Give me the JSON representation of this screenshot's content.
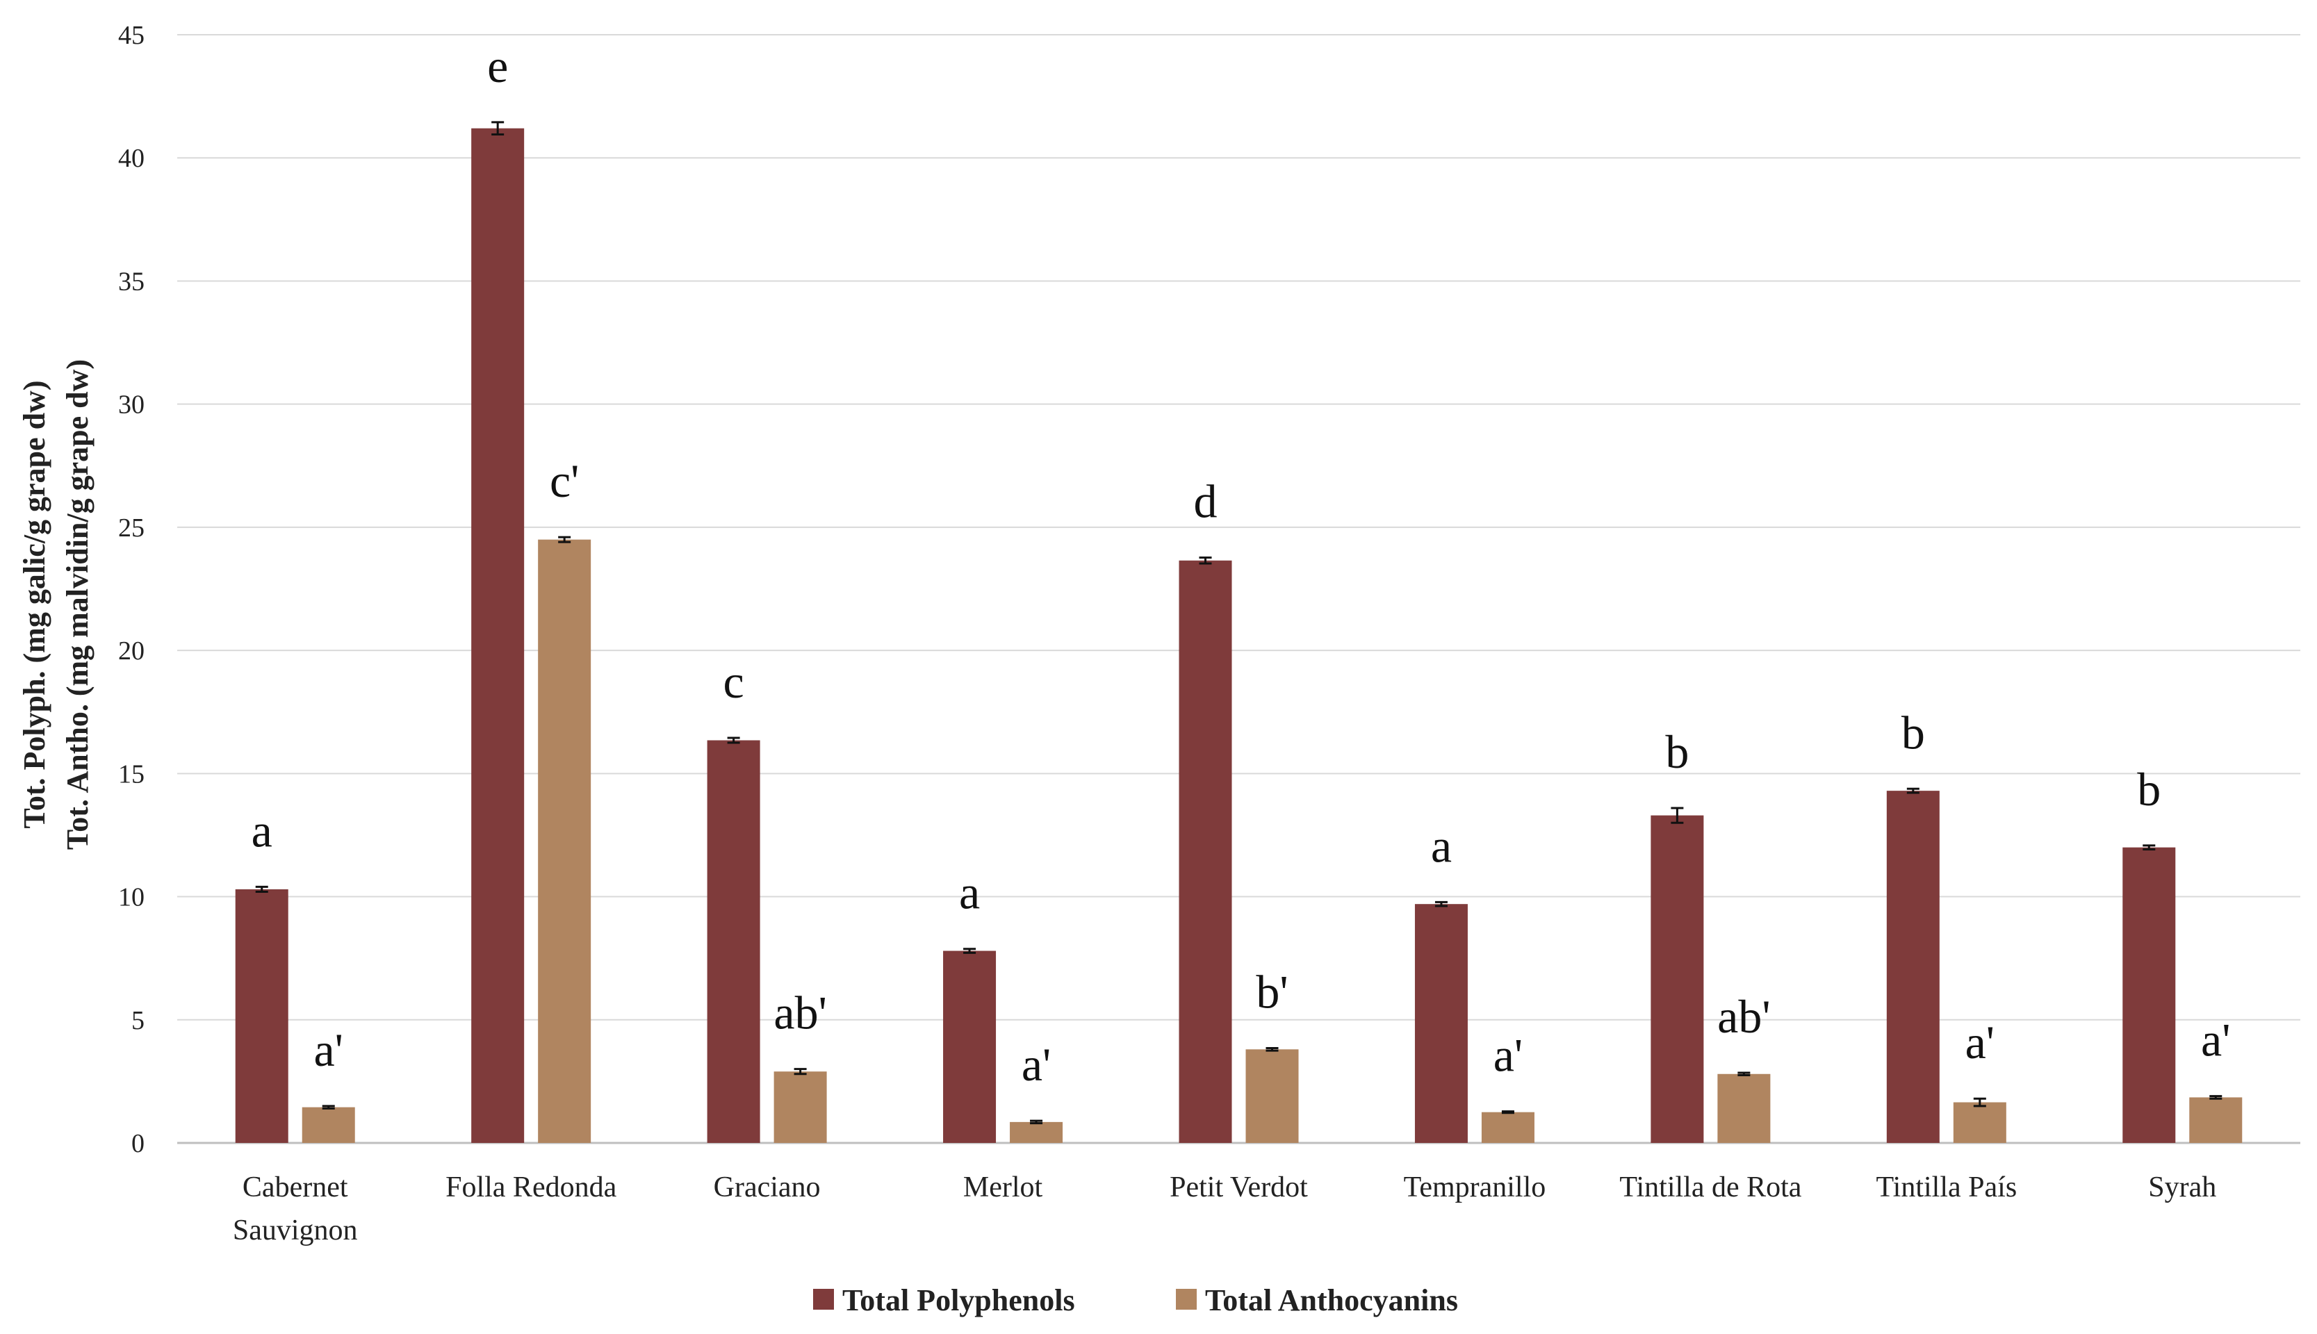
{
  "chart_data": {
    "type": "bar",
    "title": "",
    "xlabel": "",
    "ylabel_lines": [
      "Tot. Polyph. (mg galic/g grape dw)",
      "Tot. Antho. (mg malvidin/g grape dw)"
    ],
    "ylim": [
      0,
      45
    ],
    "yticks": [
      0,
      5,
      10,
      15,
      20,
      25,
      30,
      35,
      40,
      45
    ],
    "grid": true,
    "legend_position": "bottom",
    "categories": [
      [
        "Cabernet",
        "Sauvignon"
      ],
      [
        "Folla Redonda"
      ],
      [
        "Graciano"
      ],
      [
        "Merlot"
      ],
      [
        "Petit Verdot"
      ],
      [
        "Tempranillo"
      ],
      [
        "Tintilla de Rota"
      ],
      [
        "Tintilla País"
      ],
      [
        "Syrah"
      ]
    ],
    "series": [
      {
        "name": "Total Polyphenols",
        "color": "#7f3b3b",
        "values": [
          10.3,
          41.2,
          16.35,
          7.8,
          23.65,
          9.7,
          13.3,
          14.3,
          12.0
        ],
        "errors": [
          0.1,
          0.25,
          0.1,
          0.08,
          0.12,
          0.08,
          0.3,
          0.08,
          0.08
        ],
        "sig_labels": [
          "a",
          "e",
          "c",
          "a",
          "d",
          "a",
          "b",
          "b",
          "b"
        ]
      },
      {
        "name": "Total Anthocyanins",
        "color": "#b08560",
        "values": [
          1.45,
          24.5,
          2.9,
          0.85,
          3.8,
          1.25,
          2.8,
          1.65,
          1.85
        ],
        "errors": [
          0.05,
          0.1,
          0.1,
          0.05,
          0.05,
          0.03,
          0.05,
          0.15,
          0.05
        ],
        "sig_labels": [
          "a'",
          "c'",
          "ab'",
          "a'",
          "b'",
          "a'",
          "ab'",
          "a'",
          "a'"
        ]
      }
    ]
  }
}
